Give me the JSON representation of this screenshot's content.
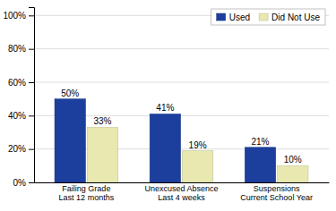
{
  "chart_data": {
    "type": "bar",
    "categories": [
      "Failing Grade\nLast 12 months",
      "Unexcused Absence\nLast 4 weeks",
      "Suspensions\nCurrent School Year"
    ],
    "series": [
      {
        "name": "Used",
        "color": "#1c3f9e",
        "values": [
          50,
          41,
          21
        ],
        "value_labels": [
          "50%",
          "41%",
          "21%"
        ]
      },
      {
        "name": "Did Not Use",
        "color": "#e8e8b0",
        "values": [
          33,
          19,
          10
        ],
        "value_labels": [
          "33%",
          "19%",
          "10%"
        ]
      }
    ],
    "ylim": [
      0,
      105
    ],
    "yticks": [
      {
        "value": 0,
        "label": "0%"
      },
      {
        "value": 20,
        "label": "20%"
      },
      {
        "value": 40,
        "label": "40%"
      },
      {
        "value": 60,
        "label": "60%"
      },
      {
        "value": 80,
        "label": "80%"
      },
      {
        "value": 100,
        "label": "100%"
      }
    ],
    "grid": true,
    "legend": "upper right",
    "data_labels": true
  }
}
